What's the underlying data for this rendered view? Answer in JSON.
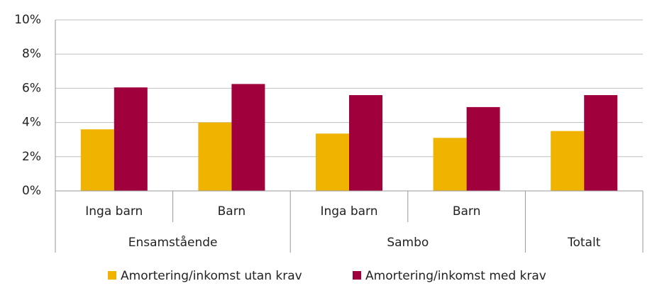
{
  "chart_data": {
    "type": "bar",
    "groups": [
      {
        "name": "Ensamstående",
        "categories": [
          "Inga barn",
          "Barn"
        ]
      },
      {
        "name": "Sambo",
        "categories": [
          "Inga barn",
          "Barn"
        ]
      },
      {
        "name": "Totalt",
        "categories": [
          null
        ]
      }
    ],
    "series": [
      {
        "name": "Amortering/inkomst utan krav",
        "color": "#f0b400",
        "values": [
          3.6,
          4.0,
          3.35,
          3.1,
          3.5
        ]
      },
      {
        "name": "Amortering/inkomst med krav",
        "color": "#a0003c",
        "values": [
          6.05,
          6.25,
          5.6,
          4.9,
          5.6
        ]
      }
    ],
    "ylim": [
      0,
      10
    ],
    "yticks": [
      {
        "value": 0,
        "label": "0%"
      },
      {
        "value": 2,
        "label": "2%"
      },
      {
        "value": 4,
        "label": "4%"
      },
      {
        "value": 6,
        "label": "6%"
      },
      {
        "value": 8,
        "label": "8%"
      },
      {
        "value": 10,
        "label": "10%"
      }
    ],
    "grid": true,
    "legend": "bottom"
  }
}
